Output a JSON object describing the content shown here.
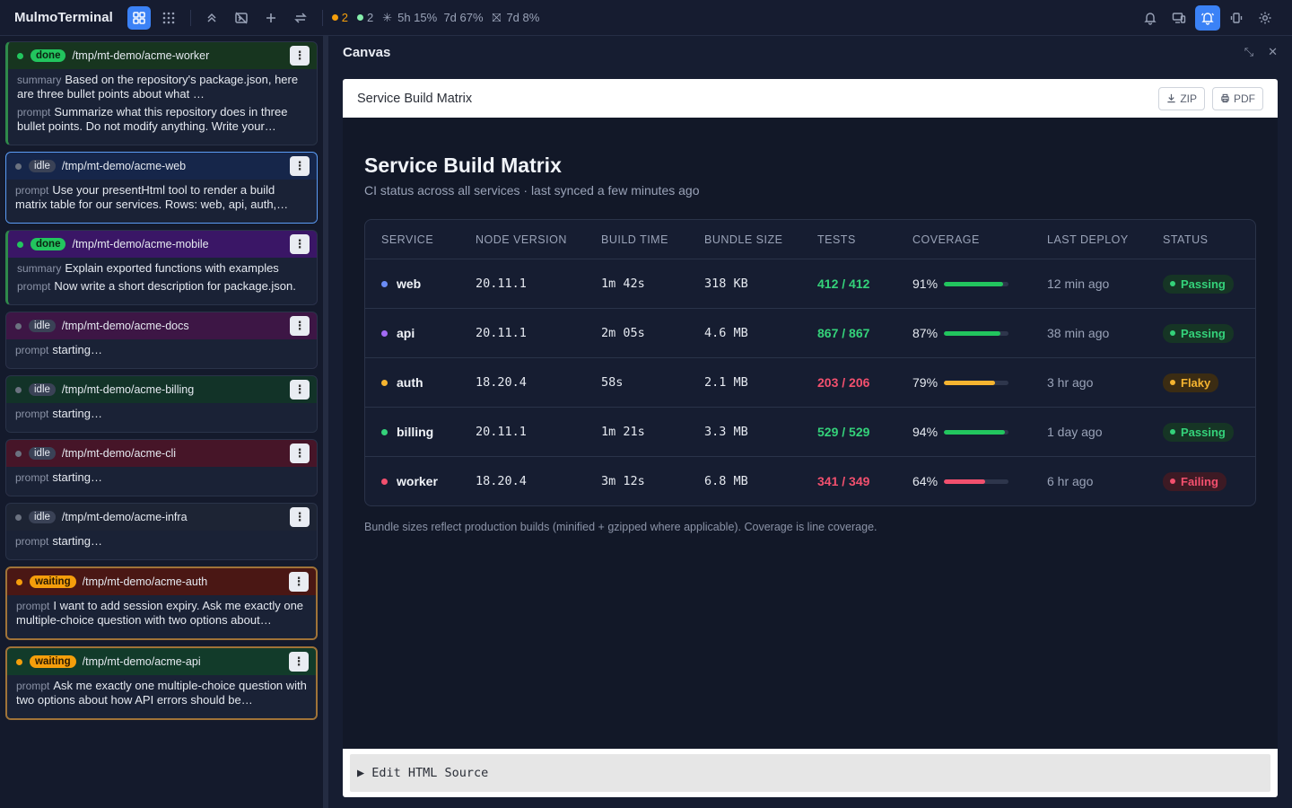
{
  "app": {
    "title": "MulmoTerminal",
    "stats": {
      "waiting_count": "2",
      "done_count": "2",
      "usage_5h": "5h 15%",
      "usage_7d": "7d 67%",
      "usage_7d_b": "7d 8%"
    },
    "colors": {
      "accent": "#3b82f6",
      "done": "#22c55e",
      "waiting": "#f59e0b",
      "idle": "#6b7280"
    }
  },
  "sessions": [
    {
      "status": "done",
      "path": "/tmp/mt-demo/acme-worker",
      "summary_label": "summary",
      "summary": "Based on the repository's package.json, here are three bullet points about what …",
      "prompt_label": "prompt",
      "prompt": "Summarize what this repository does in three bullet points. Do not modify anything. Write your…",
      "bg": "#17351f",
      "border": "#2f8a4b"
    },
    {
      "status": "idle",
      "path": "/tmp/mt-demo/acme-web",
      "prompt_label": "prompt",
      "prompt": "Use your presentHtml tool to render a build matrix table for our services. Rows: web, api, auth,…",
      "bg": "#16264a",
      "border": "#5b9cf5"
    },
    {
      "status": "done",
      "path": "/tmp/mt-demo/acme-mobile",
      "summary_label": "summary",
      "summary": "Explain exported functions with examples",
      "prompt_label": "prompt",
      "prompt": "Now write a short description for package.json.",
      "bg": "#3a1666",
      "border": "#2f8a4b"
    },
    {
      "status": "idle",
      "path": "/tmp/mt-demo/acme-docs",
      "prompt_label": "prompt",
      "prompt": "starting…",
      "bg": "#3d1645",
      "border": "#2a3349"
    },
    {
      "status": "idle",
      "path": "/tmp/mt-demo/acme-billing",
      "prompt_label": "prompt",
      "prompt": "starting…",
      "bg": "#123328",
      "border": "#2a3349"
    },
    {
      "status": "idle",
      "path": "/tmp/mt-demo/acme-cli",
      "prompt_label": "prompt",
      "prompt": "starting…",
      "bg": "#461528",
      "border": "#2a3349"
    },
    {
      "status": "idle",
      "path": "/tmp/mt-demo/acme-infra",
      "prompt_label": "prompt",
      "prompt": "starting…",
      "bg": "#1d2434",
      "border": "#2a3349"
    },
    {
      "status": "waiting",
      "path": "/tmp/mt-demo/acme-auth",
      "prompt_label": "prompt",
      "prompt": "I want to add session expiry. Ask me exactly one multiple-choice question with two options about…",
      "bg": "#4a1714",
      "border": "#a07338"
    },
    {
      "status": "waiting",
      "path": "/tmp/mt-demo/acme-api",
      "prompt_label": "prompt",
      "prompt": "Ask me exactly one multiple-choice question with two options about how API errors should be…",
      "bg": "#123b2a",
      "border": "#a07338"
    }
  ],
  "canvas": {
    "title": "Canvas",
    "doc_title": "Service Build Matrix",
    "zip_label": "ZIP",
    "pdf_label": "PDF",
    "heading": "Service Build Matrix",
    "subheading": "CI status across all services · last synced a few minutes ago",
    "columns": [
      "SERVICE",
      "NODE VERSION",
      "BUILD TIME",
      "BUNDLE SIZE",
      "TESTS",
      "COVERAGE",
      "LAST DEPLOY",
      "STATUS"
    ],
    "rows": [
      {
        "service": "web",
        "dot": "#6b8cf5",
        "node": "20.11.1",
        "build": "1m 42s",
        "bundle": "318 KB",
        "tests": "412 / 412",
        "tests_color": "#34d27a",
        "coverage": "91%",
        "coverage_value": 0.91,
        "cov_color": "#22c55e",
        "deploy": "12 min ago",
        "status": "Passing",
        "status_kind": "passing"
      },
      {
        "service": "api",
        "dot": "#a36bf5",
        "node": "20.11.1",
        "build": "2m 05s",
        "bundle": "4.6 MB",
        "tests": "867 / 867",
        "tests_color": "#34d27a",
        "coverage": "87%",
        "coverage_value": 0.87,
        "cov_color": "#22c55e",
        "deploy": "38 min ago",
        "status": "Passing",
        "status_kind": "passing"
      },
      {
        "service": "auth",
        "dot": "#f5b430",
        "node": "18.20.4",
        "build": "58s",
        "bundle": "2.1 MB",
        "tests": "203 / 206",
        "tests_color": "#f2506e",
        "coverage": "79%",
        "coverage_value": 0.79,
        "cov_color": "#f5b430",
        "deploy": "3 hr ago",
        "status": "Flaky",
        "status_kind": "flaky"
      },
      {
        "service": "billing",
        "dot": "#34d27a",
        "node": "20.11.1",
        "build": "1m 21s",
        "bundle": "3.3 MB",
        "tests": "529 / 529",
        "tests_color": "#34d27a",
        "coverage": "94%",
        "coverage_value": 0.94,
        "cov_color": "#22c55e",
        "deploy": "1 day ago",
        "status": "Passing",
        "status_kind": "passing"
      },
      {
        "service": "worker",
        "dot": "#f2506e",
        "node": "18.20.4",
        "build": "3m 12s",
        "bundle": "6.8 MB",
        "tests": "341 / 349",
        "tests_color": "#f2506e",
        "coverage": "64%",
        "coverage_value": 0.64,
        "cov_color": "#f2506e",
        "deploy": "6 hr ago",
        "status": "Failing",
        "status_kind": "failing"
      }
    ],
    "footnote": "Bundle sizes reflect production builds (minified + gzipped where applicable). Coverage is line coverage.",
    "edit_source_label": "▶ Edit HTML Source"
  }
}
